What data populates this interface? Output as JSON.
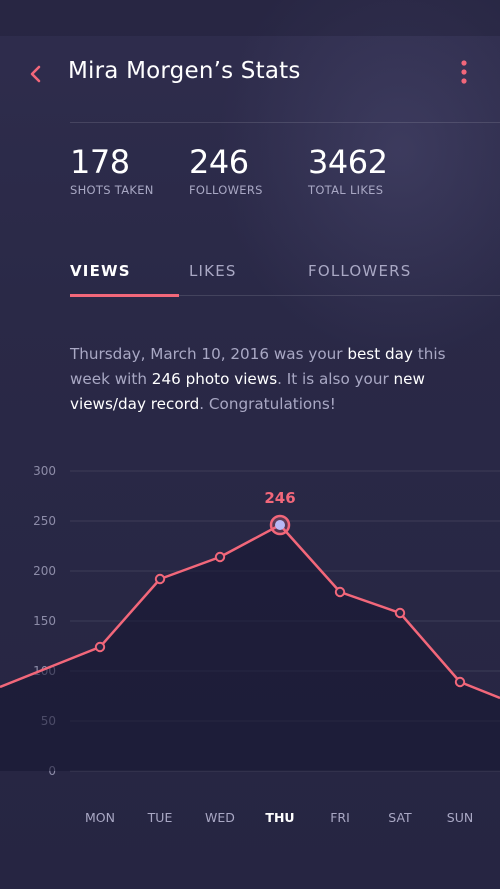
{
  "header": {
    "title": "Mira Morgen’s Stats",
    "back_icon": "chevron-left-icon",
    "more_icon": "more-vertical-icon",
    "accent": "#f2677a"
  },
  "stats": [
    {
      "value": "178",
      "label": "SHOTS TAKEN"
    },
    {
      "value": "246",
      "label": "FOLLOWERS"
    },
    {
      "value": "3462",
      "label": "TOTAL LIKES"
    }
  ],
  "tabs": [
    {
      "label": "VIEWS",
      "active": true
    },
    {
      "label": "LIKES",
      "active": false
    },
    {
      "label": "FOLLOWERS",
      "active": false
    }
  ],
  "message": {
    "p1": "Thursday, March 10, 2016 was your ",
    "h1": "best day",
    "p2": " this week with ",
    "h2": "246 photo views",
    "p3": ". It is also your ",
    "h3": "new views/day record",
    "p4": ". Congratulations!"
  },
  "chart_data": {
    "type": "line",
    "categories": [
      "MON",
      "TUE",
      "WED",
      "THU",
      "FRI",
      "SAT",
      "SUN"
    ],
    "highlight_category": "THU",
    "series": [
      {
        "values": [
          124,
          192,
          214,
          246,
          179,
          158,
          89
        ],
        "color": "#f2677a"
      }
    ],
    "edge_values": {
      "left": 84,
      "right": 73
    },
    "annotation": {
      "category": "THU",
      "text": "246"
    },
    "yticks": [
      0,
      50,
      100,
      150,
      200,
      250,
      300
    ],
    "ylim": [
      0,
      300
    ],
    "grid": true,
    "title": "",
    "xlabel": "",
    "ylabel": ""
  }
}
